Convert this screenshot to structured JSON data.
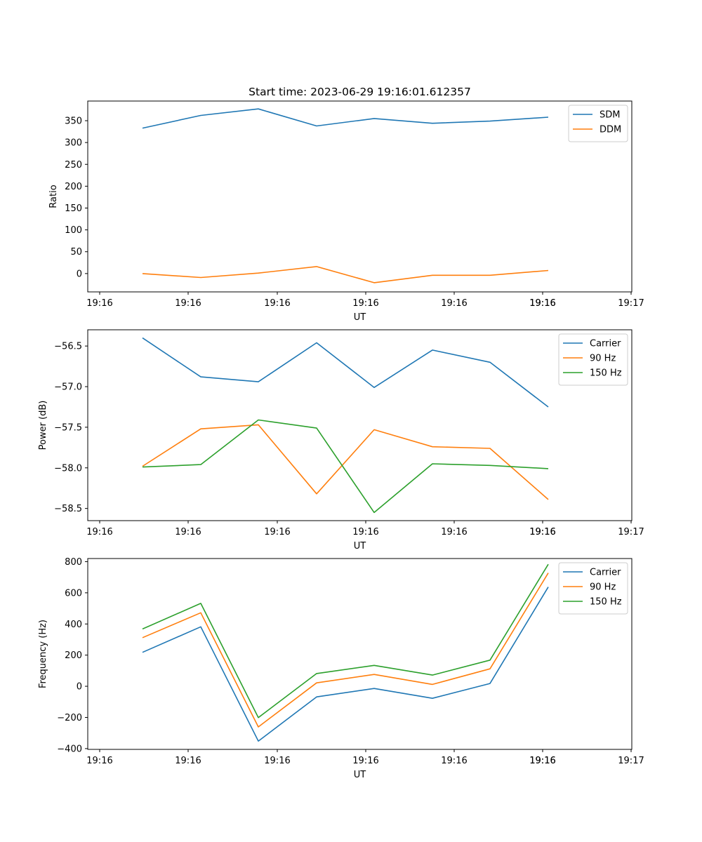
{
  "chart_data": [
    {
      "type": "line",
      "title": "Start time: 2023-06-29 19:16:01.612357",
      "xlabel": "UT",
      "ylabel": "Ratio",
      "x_tick_labels": [
        "19:16",
        "19:16",
        "19:16",
        "19:16",
        "19:16",
        "19:16",
        "19:16",
        "19:17"
      ],
      "y_ticks": [
        0,
        50,
        100,
        150,
        200,
        250,
        300,
        350
      ],
      "ylim": [
        -42,
        395
      ],
      "legend": "top-right",
      "series": [
        {
          "name": "SDM",
          "color": "#1f77b4",
          "values": [
            333,
            362,
            377,
            338,
            355,
            344,
            349,
            358
          ]
        },
        {
          "name": "DDM",
          "color": "#ff7f0e",
          "values": [
            0,
            -9,
            1,
            16,
            -21,
            -4,
            -4,
            7
          ]
        }
      ]
    },
    {
      "type": "line",
      "title": "",
      "xlabel": "UT",
      "ylabel": "Power (dB)",
      "x_tick_labels": [
        "19:16",
        "19:16",
        "19:16",
        "19:16",
        "19:16",
        "19:16",
        "19:16",
        "19:17"
      ],
      "y_ticks": [
        -58.5,
        -58.0,
        -57.5,
        -57.0,
        -56.5
      ],
      "y_tick_labels": [
        "−58.5",
        "−58.0",
        "−57.5",
        "−57.0",
        "−56.5"
      ],
      "ylim": [
        -58.65,
        -56.3
      ],
      "legend": "top-right",
      "series": [
        {
          "name": "Carrier",
          "color": "#1f77b4",
          "values": [
            -56.4,
            -56.88,
            -56.94,
            -56.46,
            -57.01,
            -56.55,
            -56.7,
            -57.25
          ]
        },
        {
          "name": "90 Hz",
          "color": "#ff7f0e",
          "values": [
            -57.98,
            -57.52,
            -57.47,
            -58.32,
            -57.53,
            -57.74,
            -57.76,
            -58.39
          ]
        },
        {
          "name": "150 Hz",
          "color": "#2ca02c",
          "values": [
            -57.99,
            -57.96,
            -57.41,
            -57.51,
            -58.55,
            -57.95,
            -57.97,
            -58.01
          ]
        }
      ]
    },
    {
      "type": "line",
      "title": "",
      "xlabel": "UT",
      "ylabel": "Frequency (Hz)",
      "x_tick_labels": [
        "19:16",
        "19:16",
        "19:16",
        "19:16",
        "19:16",
        "19:16",
        "19:16",
        "19:17"
      ],
      "y_ticks": [
        -400,
        -200,
        0,
        200,
        400,
        600,
        800
      ],
      "y_tick_labels": [
        "−400",
        "−200",
        "0",
        "200",
        "400",
        "600",
        "800"
      ],
      "ylim": [
        -405,
        820
      ],
      "legend": "top-right",
      "series": [
        {
          "name": "Carrier",
          "color": "#1f77b4",
          "values": [
            218,
            382,
            -352,
            -68,
            -14,
            -77,
            18,
            637
          ]
        },
        {
          "name": "90 Hz",
          "color": "#ff7f0e",
          "values": [
            312,
            472,
            -261,
            22,
            76,
            12,
            112,
            727
          ]
        },
        {
          "name": "150 Hz",
          "color": "#2ca02c",
          "values": [
            368,
            532,
            -201,
            82,
            134,
            72,
            168,
            783
          ]
        }
      ]
    }
  ]
}
